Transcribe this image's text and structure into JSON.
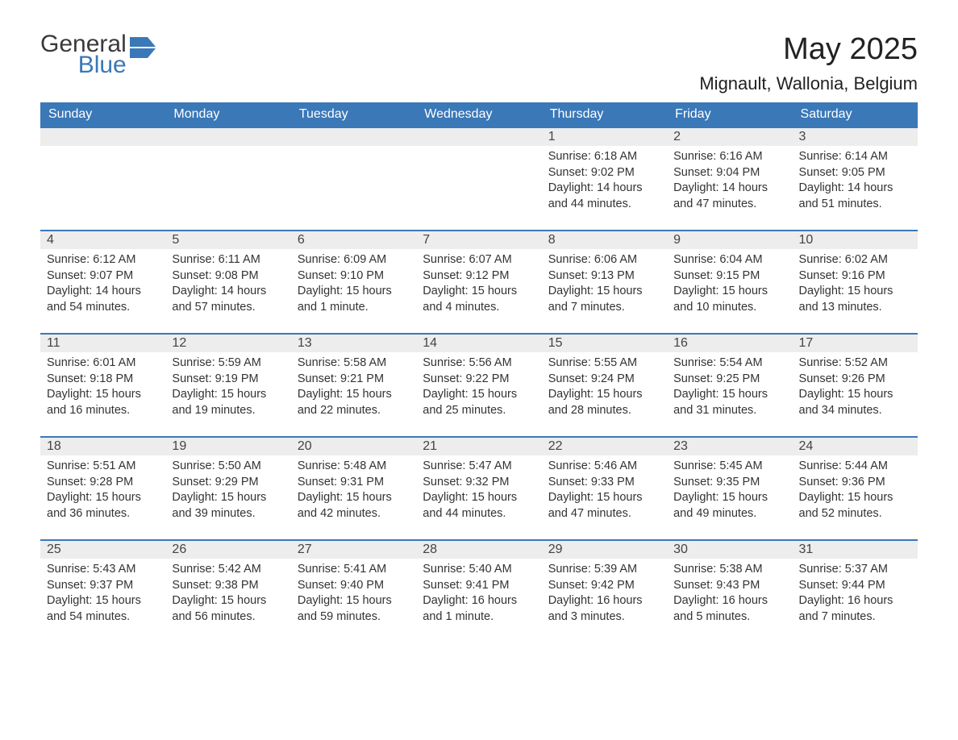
{
  "logo": {
    "general": "General",
    "blue": "Blue"
  },
  "title": "May 2025",
  "location": "Mignault, Wallonia, Belgium",
  "colors": {
    "header_bg": "#3a78b8",
    "header_text": "#ffffff",
    "daynum_bg": "#ededed",
    "daynum_border": "#3a78b8",
    "body_text": "#333333",
    "page_bg": "#ffffff"
  },
  "weekdays": [
    "Sunday",
    "Monday",
    "Tuesday",
    "Wednesday",
    "Thursday",
    "Friday",
    "Saturday"
  ],
  "weeks": [
    [
      {
        "empty": true
      },
      {
        "empty": true
      },
      {
        "empty": true
      },
      {
        "empty": true
      },
      {
        "n": "1",
        "sr": "6:18 AM",
        "ss": "9:02 PM",
        "dl": "14 hours and 44 minutes."
      },
      {
        "n": "2",
        "sr": "6:16 AM",
        "ss": "9:04 PM",
        "dl": "14 hours and 47 minutes."
      },
      {
        "n": "3",
        "sr": "6:14 AM",
        "ss": "9:05 PM",
        "dl": "14 hours and 51 minutes."
      }
    ],
    [
      {
        "n": "4",
        "sr": "6:12 AM",
        "ss": "9:07 PM",
        "dl": "14 hours and 54 minutes."
      },
      {
        "n": "5",
        "sr": "6:11 AM",
        "ss": "9:08 PM",
        "dl": "14 hours and 57 minutes."
      },
      {
        "n": "6",
        "sr": "6:09 AM",
        "ss": "9:10 PM",
        "dl": "15 hours and 1 minute."
      },
      {
        "n": "7",
        "sr": "6:07 AM",
        "ss": "9:12 PM",
        "dl": "15 hours and 4 minutes."
      },
      {
        "n": "8",
        "sr": "6:06 AM",
        "ss": "9:13 PM",
        "dl": "15 hours and 7 minutes."
      },
      {
        "n": "9",
        "sr": "6:04 AM",
        "ss": "9:15 PM",
        "dl": "15 hours and 10 minutes."
      },
      {
        "n": "10",
        "sr": "6:02 AM",
        "ss": "9:16 PM",
        "dl": "15 hours and 13 minutes."
      }
    ],
    [
      {
        "n": "11",
        "sr": "6:01 AM",
        "ss": "9:18 PM",
        "dl": "15 hours and 16 minutes."
      },
      {
        "n": "12",
        "sr": "5:59 AM",
        "ss": "9:19 PM",
        "dl": "15 hours and 19 minutes."
      },
      {
        "n": "13",
        "sr": "5:58 AM",
        "ss": "9:21 PM",
        "dl": "15 hours and 22 minutes."
      },
      {
        "n": "14",
        "sr": "5:56 AM",
        "ss": "9:22 PM",
        "dl": "15 hours and 25 minutes."
      },
      {
        "n": "15",
        "sr": "5:55 AM",
        "ss": "9:24 PM",
        "dl": "15 hours and 28 minutes."
      },
      {
        "n": "16",
        "sr": "5:54 AM",
        "ss": "9:25 PM",
        "dl": "15 hours and 31 minutes."
      },
      {
        "n": "17",
        "sr": "5:52 AM",
        "ss": "9:26 PM",
        "dl": "15 hours and 34 minutes."
      }
    ],
    [
      {
        "n": "18",
        "sr": "5:51 AM",
        "ss": "9:28 PM",
        "dl": "15 hours and 36 minutes."
      },
      {
        "n": "19",
        "sr": "5:50 AM",
        "ss": "9:29 PM",
        "dl": "15 hours and 39 minutes."
      },
      {
        "n": "20",
        "sr": "5:48 AM",
        "ss": "9:31 PM",
        "dl": "15 hours and 42 minutes."
      },
      {
        "n": "21",
        "sr": "5:47 AM",
        "ss": "9:32 PM",
        "dl": "15 hours and 44 minutes."
      },
      {
        "n": "22",
        "sr": "5:46 AM",
        "ss": "9:33 PM",
        "dl": "15 hours and 47 minutes."
      },
      {
        "n": "23",
        "sr": "5:45 AM",
        "ss": "9:35 PM",
        "dl": "15 hours and 49 minutes."
      },
      {
        "n": "24",
        "sr": "5:44 AM",
        "ss": "9:36 PM",
        "dl": "15 hours and 52 minutes."
      }
    ],
    [
      {
        "n": "25",
        "sr": "5:43 AM",
        "ss": "9:37 PM",
        "dl": "15 hours and 54 minutes."
      },
      {
        "n": "26",
        "sr": "5:42 AM",
        "ss": "9:38 PM",
        "dl": "15 hours and 56 minutes."
      },
      {
        "n": "27",
        "sr": "5:41 AM",
        "ss": "9:40 PM",
        "dl": "15 hours and 59 minutes."
      },
      {
        "n": "28",
        "sr": "5:40 AM",
        "ss": "9:41 PM",
        "dl": "16 hours and 1 minute."
      },
      {
        "n": "29",
        "sr": "5:39 AM",
        "ss": "9:42 PM",
        "dl": "16 hours and 3 minutes."
      },
      {
        "n": "30",
        "sr": "5:38 AM",
        "ss": "9:43 PM",
        "dl": "16 hours and 5 minutes."
      },
      {
        "n": "31",
        "sr": "5:37 AM",
        "ss": "9:44 PM",
        "dl": "16 hours and 7 minutes."
      }
    ]
  ],
  "labels": {
    "sunrise": "Sunrise: ",
    "sunset": "Sunset: ",
    "daylight": "Daylight: "
  }
}
